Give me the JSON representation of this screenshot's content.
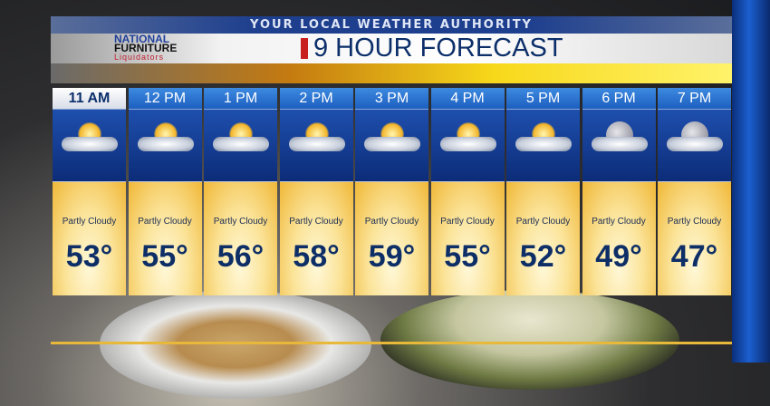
{
  "header": {
    "tagline": "YOUR LOCAL WEATHER AUTHORITY",
    "title": "9 HOUR FORECAST"
  },
  "sponsor": {
    "line1": "NATIONAL",
    "line2": "FURNITURE",
    "line3": "Liquidators"
  },
  "colors": {
    "title": "#0c2f6a",
    "accent_red": "#c8201f",
    "hour_header": "#1d5fc0"
  },
  "forecast": [
    {
      "hour": "11 AM",
      "icon": "partly-cloudy-day-icon",
      "condition": "Partly Cloudy",
      "temp": "53°",
      "selected": true
    },
    {
      "hour": "12 PM",
      "icon": "partly-cloudy-day-icon",
      "condition": "Partly Cloudy",
      "temp": "55°"
    },
    {
      "hour": "1 PM",
      "icon": "partly-cloudy-day-icon",
      "condition": "Partly Cloudy",
      "temp": "56°"
    },
    {
      "hour": "2 PM",
      "icon": "partly-cloudy-day-icon",
      "condition": "Partly Cloudy",
      "temp": "58°"
    },
    {
      "hour": "3 PM",
      "icon": "partly-cloudy-day-icon",
      "condition": "Partly Cloudy",
      "temp": "59°"
    },
    {
      "hour": "4 PM",
      "icon": "partly-cloudy-day-icon",
      "condition": "Partly Cloudy",
      "temp": "55°"
    },
    {
      "hour": "5 PM",
      "icon": "partly-cloudy-day-icon",
      "condition": "Partly Cloudy",
      "temp": "52°"
    },
    {
      "hour": "6 PM",
      "icon": "partly-cloudy-night-icon",
      "condition": "Partly Cloudy",
      "temp": "49°"
    },
    {
      "hour": "7 PM",
      "icon": "partly-cloudy-night-icon",
      "condition": "Partly Cloudy",
      "temp": "47°"
    }
  ]
}
